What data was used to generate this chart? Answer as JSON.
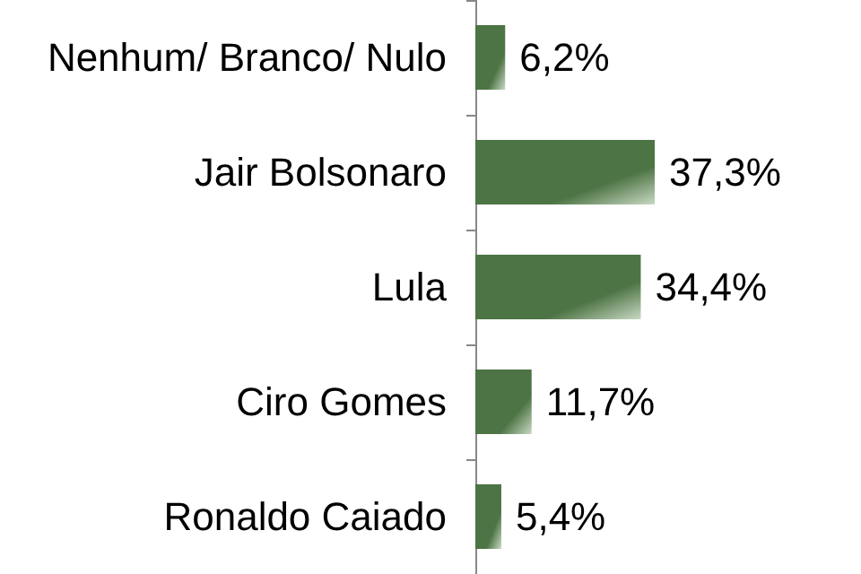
{
  "chart_data": {
    "type": "bar",
    "orientation": "horizontal",
    "categories": [
      "Nenhum/ Branco/ Nulo",
      "Jair Bolsonaro",
      "Lula",
      "Ciro Gomes",
      "Ronaldo Caiado"
    ],
    "values": [
      6.2,
      37.3,
      34.4,
      11.7,
      5.4
    ],
    "value_labels": [
      "6,2%",
      "37,3%",
      "34,4%",
      "11,7%",
      "5,4%"
    ],
    "color": "#4d7444"
  }
}
